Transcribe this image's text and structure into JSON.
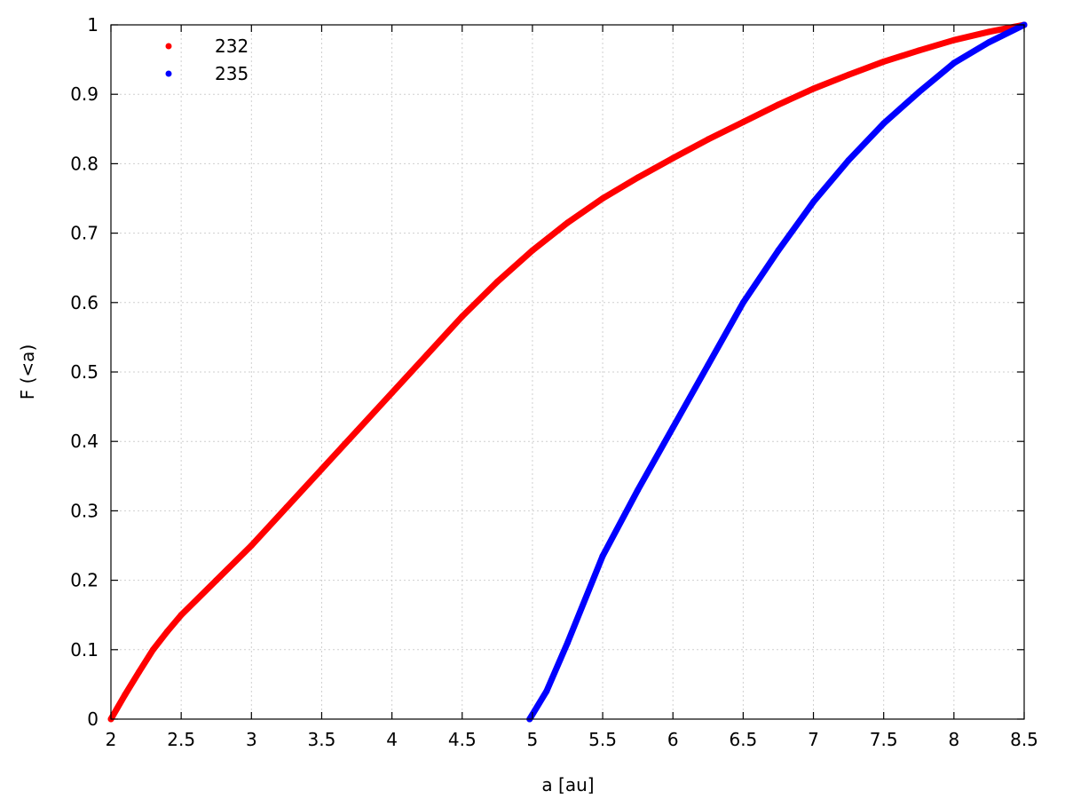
{
  "chart_data": {
    "type": "scatter",
    "title": "",
    "xlabel": "a [au]",
    "ylabel": "F (<a)",
    "xlim": [
      2,
      8.5
    ],
    "ylim": [
      0,
      1
    ],
    "xticks": [
      "2",
      "2.5",
      "3",
      "3.5",
      "4",
      "4.5",
      "5",
      "5.5",
      "6",
      "6.5",
      "7",
      "7.5",
      "8",
      "8.5"
    ],
    "yticks": [
      "0",
      "0.1",
      "0.2",
      "0.3",
      "0.4",
      "0.5",
      "0.6",
      "0.7",
      "0.8",
      "0.9",
      "1"
    ],
    "grid": true,
    "legend_position": "top-left",
    "series": [
      {
        "name": "232",
        "color": "#ff0000",
        "x": [
          2.0,
          2.1,
          2.2,
          2.3,
          2.4,
          2.5,
          2.75,
          3.0,
          3.25,
          3.5,
          3.75,
          4.0,
          4.25,
          4.5,
          4.75,
          5.0,
          5.25,
          5.5,
          5.75,
          6.0,
          6.25,
          6.5,
          6.75,
          7.0,
          7.25,
          7.5,
          7.75,
          8.0,
          8.25,
          8.5
        ],
        "y": [
          0.0,
          0.035,
          0.068,
          0.1,
          0.126,
          0.15,
          0.2,
          0.25,
          0.305,
          0.36,
          0.415,
          0.47,
          0.525,
          0.58,
          0.63,
          0.675,
          0.715,
          0.75,
          0.78,
          0.808,
          0.835,
          0.86,
          0.885,
          0.908,
          0.928,
          0.947,
          0.963,
          0.978,
          0.99,
          1.0
        ]
      },
      {
        "name": "235",
        "color": "#0000ff",
        "x": [
          4.98,
          5.1,
          5.25,
          5.5,
          5.75,
          6.0,
          6.25,
          6.5,
          6.75,
          7.0,
          7.25,
          7.5,
          7.75,
          8.0,
          8.25,
          8.5
        ],
        "y": [
          0.0,
          0.04,
          0.11,
          0.235,
          0.33,
          0.42,
          0.51,
          0.6,
          0.675,
          0.745,
          0.805,
          0.858,
          0.903,
          0.945,
          0.975,
          1.0
        ]
      }
    ]
  }
}
